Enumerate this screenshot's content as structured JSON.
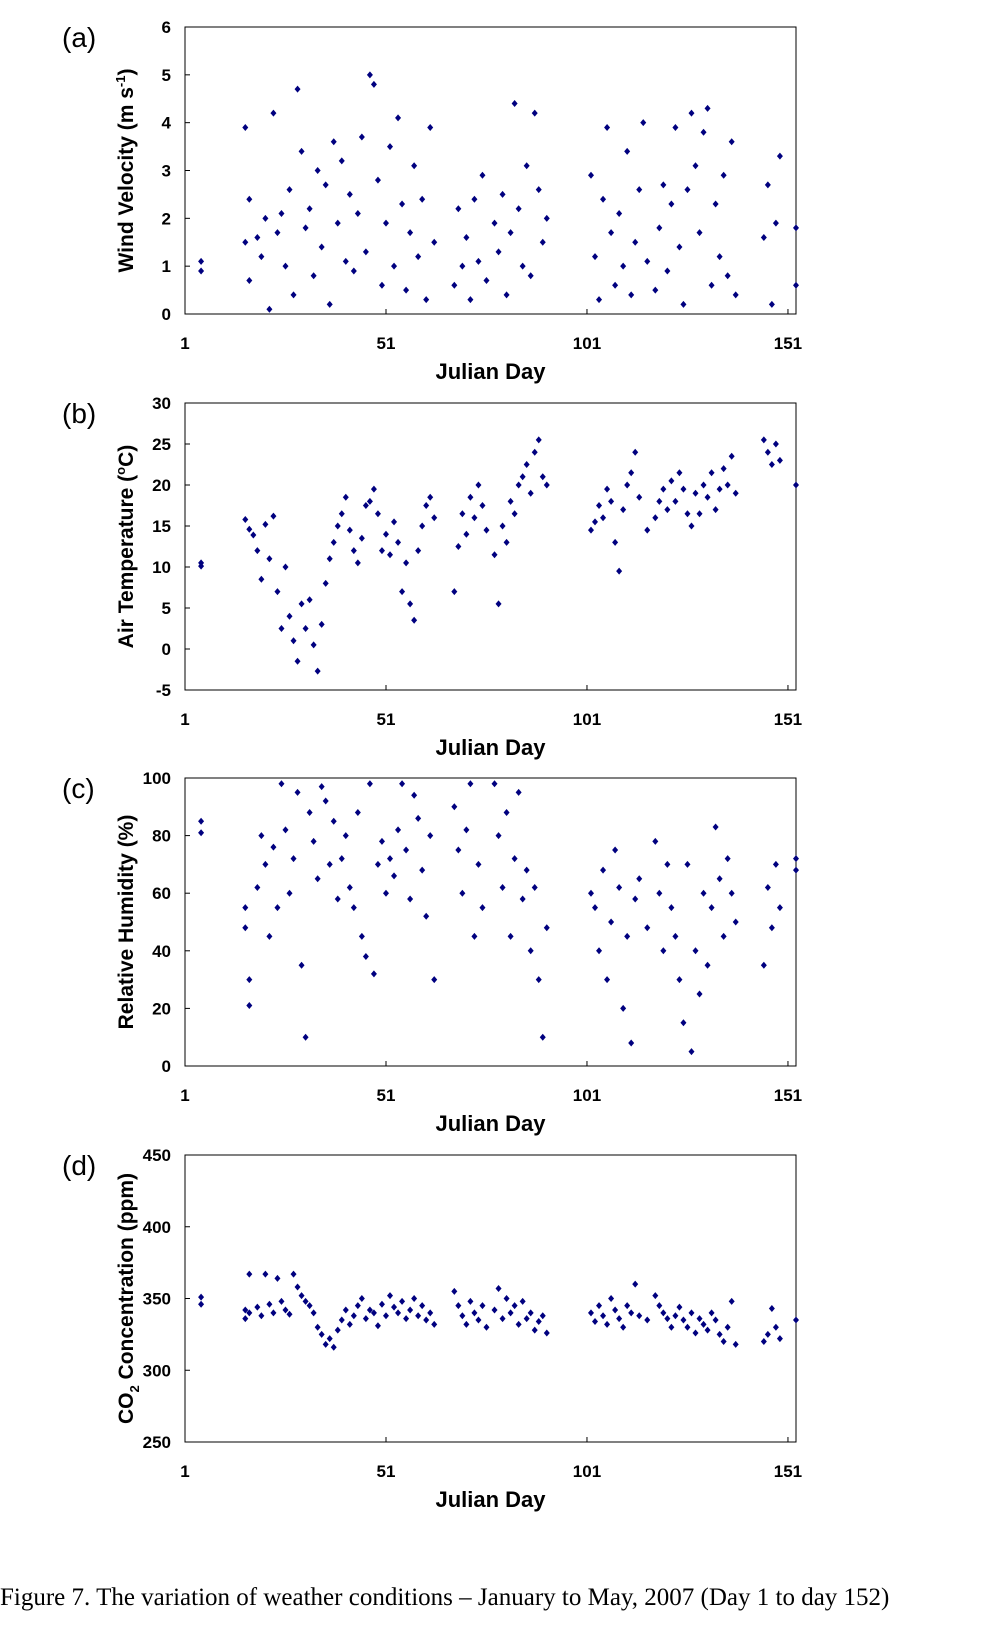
{
  "caption": "Figure 7. The variation of weather conditions – January to May, 2007 (Day 1 to day 152)",
  "colors": {
    "marker": "#00007F",
    "frame": "#000000"
  },
  "chart_data": [
    {
      "type": "scatter",
      "panel_label": "(a)",
      "xlabel": "Julian Day",
      "ylabel": "Wind Velocity (m s-1)",
      "ylabel_parts": {
        "base": "Wind Velocity (m s",
        "sup": "-1",
        "tail": ")"
      },
      "xlim": [
        1,
        153
      ],
      "ylim": [
        0,
        6
      ],
      "x_ticks": [
        1,
        51,
        101,
        151
      ],
      "y_ticks": [
        0,
        1,
        2,
        3,
        4,
        5,
        6
      ],
      "grid": false,
      "legend": "none",
      "series": [
        {
          "x": [
            5,
            5,
            16,
            16,
            17,
            17,
            19,
            20,
            21,
            22,
            23,
            24,
            25,
            26,
            27,
            28,
            29,
            30,
            31,
            32,
            33,
            34,
            35,
            36,
            37,
            38,
            39,
            40,
            41,
            42,
            43,
            44,
            45,
            46,
            47,
            48,
            49,
            50,
            51,
            52,
            53,
            54,
            55,
            56,
            57,
            58,
            59,
            60,
            61,
            62,
            63,
            68,
            69,
            70,
            71,
            72,
            73,
            74,
            75,
            76,
            78,
            79,
            80,
            81,
            82,
            83,
            84,
            85,
            86,
            87,
            88,
            89,
            90,
            91,
            102,
            103,
            104,
            105,
            106,
            107,
            108,
            109,
            110,
            111,
            112,
            113,
            114,
            115,
            116,
            118,
            119,
            120,
            121,
            122,
            123,
            124,
            125,
            126,
            127,
            128,
            129,
            130,
            131,
            132,
            133,
            134,
            135,
            136,
            137,
            138,
            145,
            146,
            147,
            148,
            149,
            153,
            153
          ],
          "y": [
            1.1,
            0.9,
            3.9,
            1.5,
            2.4,
            0.7,
            1.6,
            1.2,
            2.0,
            0.1,
            4.2,
            1.7,
            2.1,
            1.0,
            2.6,
            0.4,
            4.7,
            3.4,
            1.8,
            2.2,
            0.8,
            3.0,
            1.4,
            2.7,
            0.2,
            3.6,
            1.9,
            3.2,
            1.1,
            2.5,
            0.9,
            2.1,
            3.7,
            1.3,
            5.0,
            4.8,
            2.8,
            0.6,
            1.9,
            3.5,
            1.0,
            4.1,
            2.3,
            0.5,
            1.7,
            3.1,
            1.2,
            2.4,
            0.3,
            3.9,
            1.5,
            0.6,
            2.2,
            1.0,
            1.6,
            0.3,
            2.4,
            1.1,
            2.9,
            0.7,
            1.9,
            1.3,
            2.5,
            0.4,
            1.7,
            4.4,
            2.2,
            1.0,
            3.1,
            0.8,
            4.2,
            2.6,
            1.5,
            2.0,
            2.9,
            1.2,
            0.3,
            2.4,
            3.9,
            1.7,
            0.6,
            2.1,
            1.0,
            3.4,
            0.4,
            1.5,
            2.6,
            4.0,
            1.1,
            0.5,
            1.8,
            2.7,
            0.9,
            2.3,
            3.9,
            1.4,
            0.2,
            2.6,
            4.2,
            3.1,
            1.7,
            3.8,
            4.3,
            0.6,
            2.3,
            1.2,
            2.9,
            0.8,
            3.6,
            0.4,
            1.6,
            2.7,
            0.2,
            1.9,
            3.3,
            1.8,
            0.6
          ]
        }
      ]
    },
    {
      "type": "scatter",
      "panel_label": "(b)",
      "xlabel": "Julian Day",
      "ylabel": "Air Temperature (oC)",
      "ylabel_parts": {
        "base": "Air Temperature (",
        "sup": "o",
        "tail": "C)"
      },
      "xlim": [
        1,
        153
      ],
      "ylim": [
        -5,
        30
      ],
      "x_ticks": [
        1,
        51,
        101,
        151
      ],
      "y_ticks": [
        -5,
        0,
        5,
        10,
        15,
        20,
        25,
        30
      ],
      "grid": false,
      "legend": "none",
      "series": [
        {
          "x": [
            5,
            5,
            16,
            17,
            18,
            19,
            20,
            21,
            22,
            23,
            24,
            25,
            26,
            27,
            28,
            29,
            30,
            31,
            32,
            33,
            34,
            35,
            36,
            37,
            38,
            39,
            40,
            41,
            42,
            43,
            44,
            45,
            46,
            47,
            48,
            49,
            50,
            51,
            52,
            53,
            54,
            55,
            56,
            57,
            58,
            59,
            60,
            61,
            62,
            63,
            68,
            69,
            70,
            71,
            72,
            73,
            74,
            75,
            76,
            78,
            79,
            80,
            81,
            82,
            83,
            84,
            85,
            86,
            87,
            88,
            89,
            90,
            91,
            102,
            103,
            104,
            105,
            106,
            107,
            108,
            109,
            110,
            111,
            112,
            113,
            114,
            116,
            118,
            119,
            120,
            121,
            122,
            123,
            124,
            125,
            126,
            127,
            128,
            129,
            130,
            131,
            132,
            133,
            134,
            135,
            136,
            137,
            138,
            145,
            146,
            147,
            148,
            149,
            153
          ],
          "y": [
            10.5,
            10.1,
            15.8,
            14.6,
            13.9,
            12.0,
            8.5,
            15.2,
            11.0,
            16.2,
            7.0,
            2.5,
            10.0,
            4.0,
            1.0,
            -1.5,
            5.5,
            2.5,
            6.0,
            0.5,
            -2.7,
            3.0,
            8.0,
            11.0,
            13.0,
            15.0,
            16.5,
            18.5,
            14.5,
            12.0,
            10.5,
            13.5,
            17.5,
            18.0,
            19.5,
            16.5,
            12.0,
            14.0,
            11.5,
            15.5,
            13.0,
            7.0,
            10.5,
            5.5,
            3.5,
            12.0,
            15.0,
            17.5,
            18.5,
            16.0,
            7.0,
            12.5,
            16.5,
            14.0,
            18.5,
            16.0,
            20.0,
            17.5,
            14.5,
            11.5,
            5.5,
            15.0,
            13.0,
            18.0,
            16.5,
            20.0,
            21.0,
            22.5,
            19.0,
            24.0,
            25.5,
            21.0,
            20.0,
            14.5,
            15.5,
            17.5,
            16.0,
            19.5,
            18.0,
            13.0,
            9.5,
            17.0,
            20.0,
            21.5,
            24.0,
            18.5,
            14.5,
            16.0,
            18.0,
            19.5,
            17.0,
            20.5,
            18.0,
            21.5,
            19.5,
            16.5,
            15.0,
            19.0,
            16.5,
            20.0,
            18.5,
            21.5,
            17.0,
            19.5,
            22.0,
            20.0,
            23.5,
            19.0,
            25.5,
            24.0,
            22.5,
            25.0,
            23.0,
            20.0
          ]
        }
      ]
    },
    {
      "type": "scatter",
      "panel_label": "(c)",
      "xlabel": "Julian Day",
      "ylabel": "Relative Humidity (%)",
      "ylabel_parts": {
        "base": "Relative Humidity (%)",
        "sup": "",
        "tail": ""
      },
      "xlim": [
        1,
        153
      ],
      "ylim": [
        0,
        100
      ],
      "x_ticks": [
        1,
        51,
        101,
        151
      ],
      "y_ticks": [
        0,
        20,
        40,
        60,
        80,
        100
      ],
      "grid": false,
      "legend": "none",
      "series": [
        {
          "x": [
            5,
            5,
            16,
            16,
            17,
            17,
            19,
            20,
            21,
            22,
            23,
            24,
            25,
            26,
            27,
            28,
            29,
            30,
            31,
            32,
            33,
            34,
            35,
            36,
            37,
            38,
            39,
            40,
            41,
            42,
            43,
            44,
            45,
            46,
            47,
            48,
            49,
            50,
            51,
            52,
            53,
            54,
            55,
            56,
            57,
            58,
            59,
            60,
            61,
            62,
            63,
            68,
            69,
            70,
            71,
            72,
            73,
            74,
            75,
            78,
            79,
            80,
            81,
            82,
            83,
            84,
            85,
            86,
            87,
            88,
            89,
            90,
            91,
            102,
            103,
            104,
            105,
            106,
            107,
            108,
            109,
            110,
            111,
            112,
            113,
            114,
            116,
            118,
            119,
            120,
            121,
            122,
            123,
            124,
            125,
            126,
            127,
            128,
            129,
            130,
            131,
            132,
            133,
            134,
            135,
            136,
            137,
            138,
            145,
            146,
            147,
            148,
            149,
            153,
            153
          ],
          "y": [
            85,
            81,
            55,
            48,
            30,
            21,
            62,
            80,
            70,
            45,
            76,
            55,
            98,
            82,
            60,
            72,
            95,
            35,
            10,
            88,
            78,
            65,
            97,
            92,
            70,
            85,
            58,
            72,
            80,
            62,
            55,
            88,
            45,
            38,
            98,
            32,
            70,
            78,
            60,
            72,
            66,
            82,
            98,
            75,
            58,
            94,
            86,
            68,
            52,
            80,
            30,
            90,
            75,
            60,
            82,
            98,
            45,
            70,
            55,
            98,
            80,
            62,
            88,
            45,
            72,
            95,
            58,
            68,
            40,
            62,
            30,
            10,
            48,
            60,
            55,
            40,
            68,
            30,
            50,
            75,
            62,
            20,
            45,
            8,
            58,
            65,
            48,
            78,
            60,
            40,
            70,
            55,
            45,
            30,
            15,
            70,
            5,
            40,
            25,
            60,
            35,
            55,
            83,
            65,
            45,
            72,
            60,
            50,
            35,
            62,
            48,
            70,
            55,
            72,
            68
          ]
        }
      ]
    },
    {
      "type": "scatter",
      "panel_label": "(d)",
      "xlabel": "Julian Day",
      "ylabel": "CO2 Concentration (ppm)",
      "ylabel_parts": {
        "base": "CO",
        "sub": "2",
        "tail": " Concentration (ppm)"
      },
      "xlim": [
        1,
        153
      ],
      "ylim": [
        250,
        450
      ],
      "x_ticks": [
        1,
        51,
        101,
        151
      ],
      "y_ticks": [
        250,
        300,
        350,
        400,
        450
      ],
      "grid": false,
      "legend": "none",
      "series": [
        {
          "x": [
            5,
            5,
            16,
            16,
            17,
            17,
            19,
            20,
            21,
            22,
            23,
            24,
            25,
            26,
            27,
            28,
            29,
            30,
            31,
            32,
            33,
            34,
            35,
            36,
            37,
            38,
            39,
            40,
            41,
            42,
            43,
            44,
            45,
            46,
            47,
            48,
            49,
            50,
            51,
            52,
            53,
            54,
            55,
            56,
            57,
            58,
            59,
            60,
            61,
            62,
            63,
            68,
            69,
            70,
            71,
            72,
            73,
            74,
            75,
            76,
            78,
            79,
            80,
            81,
            82,
            83,
            84,
            85,
            86,
            87,
            88,
            89,
            90,
            91,
            102,
            103,
            104,
            105,
            106,
            107,
            108,
            109,
            110,
            111,
            112,
            113,
            114,
            116,
            118,
            119,
            120,
            121,
            122,
            123,
            124,
            125,
            126,
            127,
            128,
            129,
            130,
            131,
            132,
            133,
            134,
            135,
            136,
            137,
            138,
            145,
            146,
            147,
            148,
            149,
            153
          ],
          "y": [
            351,
            346,
            342,
            336,
            367,
            340,
            344,
            338,
            367,
            346,
            340,
            364,
            348,
            342,
            339,
            367,
            358,
            352,
            348,
            345,
            340,
            330,
            325,
            318,
            322,
            316,
            328,
            335,
            342,
            332,
            338,
            345,
            350,
            336,
            342,
            340,
            331,
            346,
            338,
            352,
            344,
            340,
            348,
            336,
            342,
            350,
            338,
            345,
            335,
            340,
            332,
            355,
            345,
            338,
            332,
            348,
            340,
            335,
            345,
            330,
            342,
            357,
            336,
            350,
            340,
            345,
            332,
            348,
            336,
            340,
            328,
            334,
            338,
            326,
            340,
            334,
            345,
            338,
            332,
            350,
            342,
            336,
            330,
            345,
            340,
            360,
            338,
            335,
            352,
            345,
            340,
            336,
            330,
            338,
            344,
            335,
            330,
            340,
            326,
            336,
            332,
            328,
            340,
            335,
            325,
            320,
            330,
            348,
            318,
            320,
            325,
            343,
            330,
            322,
            335
          ]
        }
      ]
    }
  ]
}
